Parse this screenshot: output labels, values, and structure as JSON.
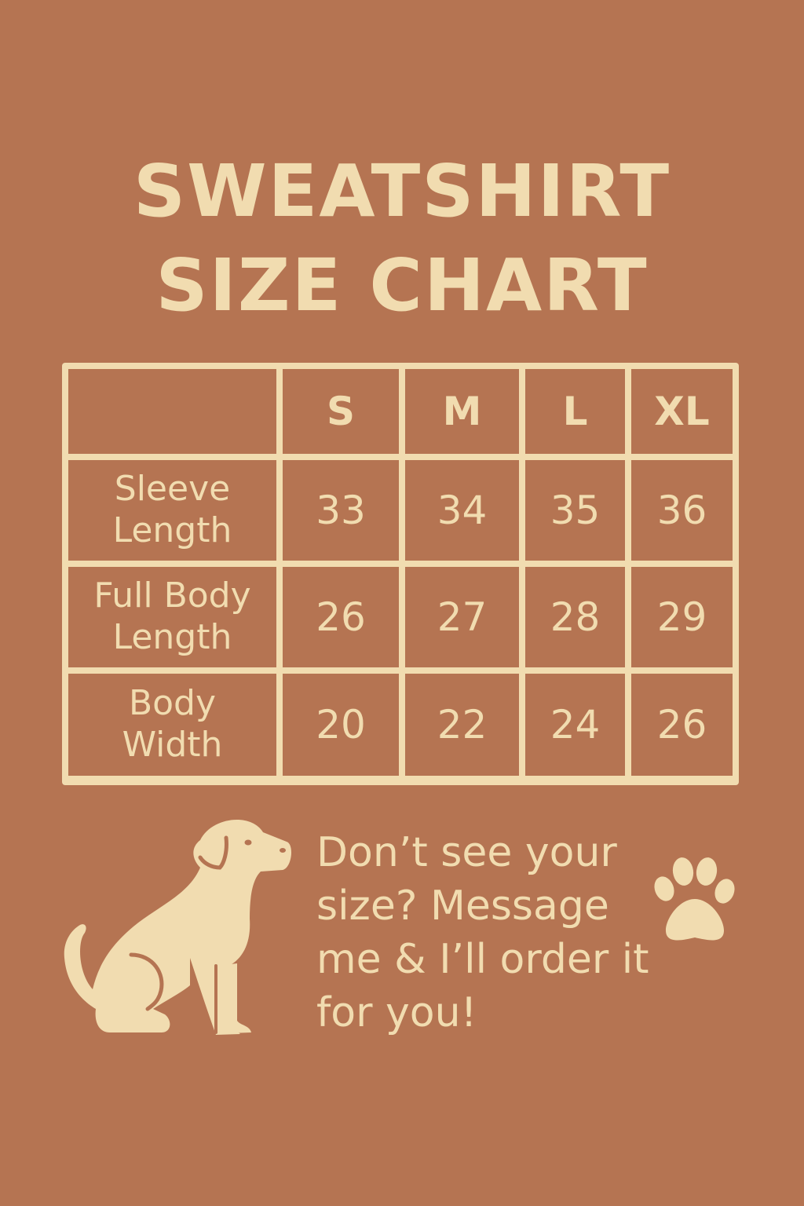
{
  "title": {
    "line1": "SWEATSHIRT",
    "line2": "SIZE CHART"
  },
  "table": {
    "corner": "",
    "columns": [
      "S",
      "M",
      "L",
      "XL"
    ],
    "rows": [
      {
        "label_line1": "Sleeve",
        "label_line2": "Length",
        "values": [
          "33",
          "34",
          "35",
          "36"
        ]
      },
      {
        "label_line1": "Full Body",
        "label_line2": "Length",
        "values": [
          "26",
          "27",
          "28",
          "29"
        ]
      },
      {
        "label_line1": "Body",
        "label_line2": "Width",
        "values": [
          "20",
          "22",
          "24",
          "26"
        ]
      }
    ]
  },
  "message": "Don’t see your size? Message me & I’ll order it for you!",
  "icons": {
    "dog": "sitting-dog-icon",
    "paw": "paw-print-icon"
  },
  "colors": {
    "background": "#b57452",
    "foreground": "#f1dcb0"
  }
}
